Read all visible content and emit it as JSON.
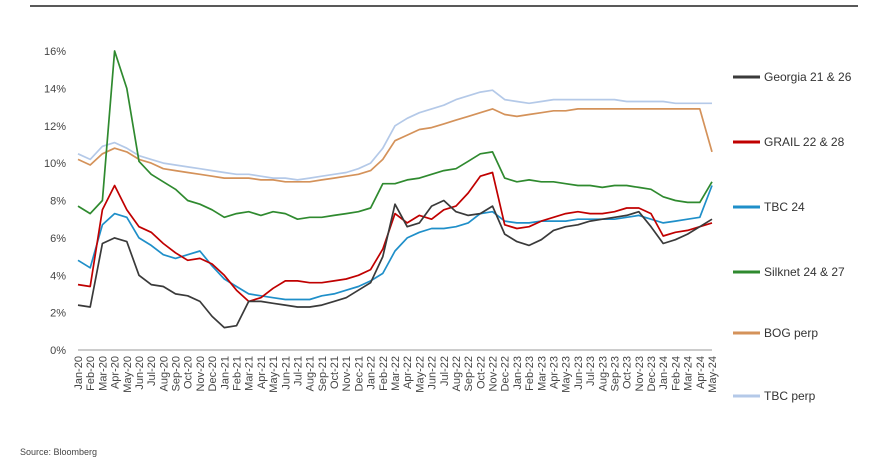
{
  "source_note": "Source: Bloomberg",
  "chart_data": {
    "type": "line",
    "title": "",
    "xlabel": "",
    "ylabel": "",
    "ylim": [
      0,
      16
    ],
    "y_ticks": [
      "0%",
      "2%",
      "4%",
      "6%",
      "8%",
      "10%",
      "12%",
      "14%",
      "16%"
    ],
    "x_ticks": [
      "Jan-20",
      "Feb-20",
      "Mar-20",
      "Apr-20",
      "May-20",
      "Jun-20",
      "Jul-20",
      "Aug-20",
      "Sep-20",
      "Oct-20",
      "Nov-20",
      "Dec-20",
      "Jan-21",
      "Feb-21",
      "Mar-21",
      "Apr-21",
      "May-21",
      "Jun-21",
      "Jul-21",
      "Aug-21",
      "Sep-21",
      "Oct-21",
      "Nov-21",
      "Dec-21",
      "Jan-22",
      "Feb-22",
      "Mar-22",
      "Apr-22",
      "May-22",
      "Jun-22",
      "Jul-22",
      "Aug-22",
      "Sep-22",
      "Oct-22",
      "Nov-22",
      "Dec-22",
      "Jan-23",
      "Feb-23",
      "Mar-23",
      "Apr-23",
      "May-23",
      "Jun-23",
      "Jul-23",
      "Aug-23",
      "Sep-23",
      "Oct-23",
      "Nov-23",
      "Dec-23",
      "Jan-24",
      "Feb-24",
      "Mar-24",
      "Apr-24",
      "May-24"
    ],
    "legend_position": "right",
    "series": [
      {
        "name": "Georgia 21 & 26",
        "color": "#3a3a3a",
        "values": [
          2.4,
          2.3,
          5.7,
          6.0,
          5.8,
          4.0,
          3.5,
          3.4,
          3.0,
          2.9,
          2.6,
          1.8,
          1.2,
          1.3,
          2.6,
          2.6,
          2.5,
          2.4,
          2.3,
          2.3,
          2.4,
          2.6,
          2.8,
          3.2,
          3.6,
          5.0,
          7.8,
          6.6,
          6.8,
          7.7,
          8.0,
          7.4,
          7.2,
          7.3,
          7.7,
          6.2,
          5.8,
          5.6,
          5.9,
          6.4,
          6.6,
          6.7,
          6.9,
          7.0,
          7.1,
          7.2,
          7.4,
          6.6,
          5.7,
          5.9,
          6.2,
          6.6,
          7.0
        ]
      },
      {
        "name": "GRAIL 22 & 28",
        "color": "#c00000",
        "values": [
          3.5,
          3.4,
          7.5,
          8.8,
          7.5,
          6.6,
          6.3,
          5.7,
          5.2,
          4.8,
          4.9,
          4.6,
          4.0,
          3.2,
          2.6,
          2.8,
          3.3,
          3.7,
          3.7,
          3.6,
          3.6,
          3.7,
          3.8,
          4.0,
          4.3,
          5.4,
          7.3,
          6.8,
          7.2,
          7.0,
          7.5,
          7.7,
          8.4,
          9.3,
          9.5,
          6.7,
          6.5,
          6.6,
          6.9,
          7.1,
          7.3,
          7.4,
          7.3,
          7.3,
          7.4,
          7.6,
          7.6,
          7.3,
          6.1,
          6.3,
          6.4,
          6.6,
          6.8
        ]
      },
      {
        "name": "TBC 24",
        "color": "#1f8fc9",
        "values": [
          4.8,
          4.4,
          6.7,
          7.3,
          7.1,
          6.0,
          5.6,
          5.1,
          4.9,
          5.1,
          5.3,
          4.5,
          3.8,
          3.4,
          3.0,
          2.9,
          2.8,
          2.7,
          2.7,
          2.7,
          2.9,
          3.0,
          3.2,
          3.4,
          3.7,
          4.1,
          5.3,
          6.0,
          6.3,
          6.5,
          6.5,
          6.6,
          6.8,
          7.3,
          7.4,
          6.9,
          6.8,
          6.8,
          6.9,
          6.9,
          6.9,
          7.0,
          7.0,
          7.0,
          7.0,
          7.1,
          7.2,
          7.0,
          6.8,
          6.9,
          7.0,
          7.1,
          8.8
        ]
      },
      {
        "name": "Silknet 24 & 27",
        "color": "#2f8a2f",
        "values": [
          7.7,
          7.3,
          8.0,
          16.0,
          14.0,
          10.1,
          9.4,
          9.0,
          8.6,
          8.0,
          7.8,
          7.5,
          7.1,
          7.3,
          7.4,
          7.2,
          7.4,
          7.3,
          7.0,
          7.1,
          7.1,
          7.2,
          7.3,
          7.4,
          7.6,
          8.9,
          8.9,
          9.1,
          9.2,
          9.4,
          9.6,
          9.7,
          10.1,
          10.5,
          10.6,
          9.2,
          9.0,
          9.1,
          9.0,
          9.0,
          8.9,
          8.8,
          8.8,
          8.7,
          8.8,
          8.8,
          8.7,
          8.6,
          8.2,
          8.0,
          7.9,
          7.9,
          9.0
        ]
      },
      {
        "name": "BOG perp",
        "color": "#d4925a",
        "values": [
          10.2,
          9.9,
          10.5,
          10.8,
          10.6,
          10.2,
          10.0,
          9.7,
          9.6,
          9.5,
          9.4,
          9.3,
          9.2,
          9.2,
          9.2,
          9.1,
          9.1,
          9.0,
          9.0,
          9.0,
          9.1,
          9.2,
          9.3,
          9.4,
          9.6,
          10.2,
          11.2,
          11.5,
          11.8,
          11.9,
          12.1,
          12.3,
          12.5,
          12.7,
          12.9,
          12.6,
          12.5,
          12.6,
          12.7,
          12.8,
          12.8,
          12.9,
          12.9,
          12.9,
          12.9,
          12.9,
          12.9,
          12.9,
          12.9,
          12.9,
          12.9,
          12.9,
          10.6
        ]
      },
      {
        "name": "TBC perp",
        "color": "#b4c9e8",
        "values": [
          10.5,
          10.2,
          10.9,
          11.1,
          10.8,
          10.4,
          10.2,
          10.0,
          9.9,
          9.8,
          9.7,
          9.6,
          9.5,
          9.4,
          9.4,
          9.3,
          9.2,
          9.2,
          9.1,
          9.2,
          9.3,
          9.4,
          9.5,
          9.7,
          10.0,
          10.8,
          12.0,
          12.4,
          12.7,
          12.9,
          13.1,
          13.4,
          13.6,
          13.8,
          13.9,
          13.4,
          13.3,
          13.2,
          13.3,
          13.4,
          13.4,
          13.4,
          13.4,
          13.4,
          13.4,
          13.3,
          13.3,
          13.3,
          13.3,
          13.2,
          13.2,
          13.2,
          13.2
        ]
      }
    ]
  }
}
